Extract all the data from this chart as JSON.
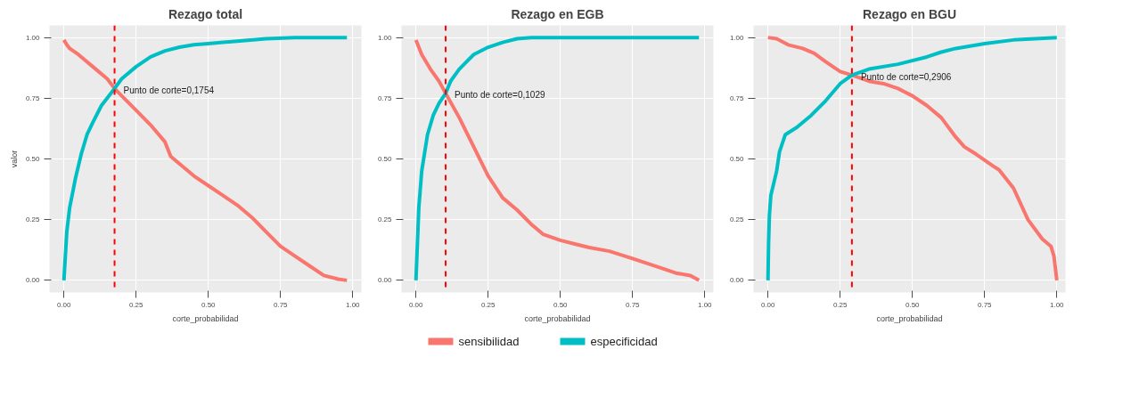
{
  "chart_data": [
    {
      "type": "line",
      "title": "Rezago total",
      "xlabel": "corte_probabilidad",
      "ylabel": "valor",
      "xlim": [
        -0.05,
        1.03
      ],
      "ylim": [
        -0.05,
        1.05
      ],
      "xticks": [
        {
          "value": 0,
          "label": "0.00"
        },
        {
          "value": 0.25,
          "label": "0.25"
        },
        {
          "value": 0.5,
          "label": "0.50"
        },
        {
          "value": 0.75,
          "label": "0.75"
        },
        {
          "value": 1,
          "label": "1.00"
        }
      ],
      "yticks": [
        {
          "value": 0,
          "label": "0.00"
        },
        {
          "value": 0.25,
          "label": "0.25"
        },
        {
          "value": 0.5,
          "label": "0.50"
        },
        {
          "value": 0.75,
          "label": "0.75"
        },
        {
          "value": 1,
          "label": "1.00"
        }
      ],
      "grid": true,
      "legend": false,
      "marker": "none",
      "line_style": "solid",
      "series": [
        {
          "color": "#f8766d",
          "x": [
            0,
            0.01,
            0.02,
            0.05,
            0.1,
            0.15,
            0.1754,
            0.2,
            0.25,
            0.3,
            0.35,
            0.37,
            0.45,
            0.5,
            0.55,
            0.6,
            0.65,
            0.7,
            0.75,
            0.8,
            0.85,
            0.9,
            0.95,
            0.98
          ],
          "values": [
            0.99,
            0.97,
            0.955,
            0.93,
            0.88,
            0.83,
            0.79,
            0.76,
            0.7,
            0.64,
            0.57,
            0.51,
            0.43,
            0.39,
            0.35,
            0.31,
            0.26,
            0.2,
            0.14,
            0.1,
            0.06,
            0.02,
            0.005,
            0.0
          ]
        },
        {
          "color": "#00bfc4",
          "x": [
            0,
            0.005,
            0.01,
            0.02,
            0.04,
            0.06,
            0.08,
            0.1,
            0.13,
            0.1754,
            0.2,
            0.25,
            0.3,
            0.35,
            0.4,
            0.45,
            0.5,
            0.6,
            0.7,
            0.8,
            0.98
          ],
          "values": [
            0,
            0.1,
            0.2,
            0.3,
            0.42,
            0.52,
            0.6,
            0.65,
            0.72,
            0.79,
            0.83,
            0.88,
            0.92,
            0.945,
            0.96,
            0.97,
            0.975,
            0.985,
            0.995,
            1.0,
            1.0
          ]
        }
      ],
      "ref_lines": [
        {
          "axis": "x",
          "value": 0.1754,
          "color": "#ff0000",
          "line_style": "dashed"
        }
      ],
      "annotations": [
        {
          "text": "Punto de corte=0,1754",
          "x": 0.1754,
          "y": 0.79
        }
      ]
    },
    {
      "type": "line",
      "title": "Rezago en EGB",
      "xlabel": "corte_probabilidad",
      "xlim": [
        -0.05,
        1.03
      ],
      "ylim": [
        -0.05,
        1.05
      ],
      "xticks": [
        {
          "value": 0,
          "label": "0.00"
        },
        {
          "value": 0.25,
          "label": "0.25"
        },
        {
          "value": 0.5,
          "label": "0.50"
        },
        {
          "value": 0.75,
          "label": "0.75"
        },
        {
          "value": 1,
          "label": "1.00"
        }
      ],
      "yticks": [
        {
          "value": 0,
          "label": "0.00"
        },
        {
          "value": 0.25,
          "label": "0.25"
        },
        {
          "value": 0.5,
          "label": "0.50"
        },
        {
          "value": 0.75,
          "label": "0.75"
        },
        {
          "value": 1,
          "label": "1.00"
        }
      ],
      "grid": true,
      "legend": "bottom",
      "marker": "none",
      "line_style": "solid",
      "series": [
        {
          "name": "sensibilidad",
          "color": "#f8766d",
          "x": [
            0,
            0.02,
            0.05,
            0.08,
            0.1029,
            0.15,
            0.2,
            0.25,
            0.3,
            0.35,
            0.4,
            0.44,
            0.5,
            0.55,
            0.6,
            0.67,
            0.75,
            0.85,
            0.9,
            0.95,
            0.98
          ],
          "values": [
            0.99,
            0.93,
            0.87,
            0.82,
            0.77,
            0.67,
            0.55,
            0.43,
            0.34,
            0.29,
            0.23,
            0.19,
            0.165,
            0.15,
            0.135,
            0.12,
            0.09,
            0.05,
            0.03,
            0.02,
            0.0
          ]
        },
        {
          "name": "especificidad",
          "color": "#00bfc4",
          "x": [
            0,
            0.005,
            0.01,
            0.02,
            0.04,
            0.06,
            0.08,
            0.1029,
            0.12,
            0.15,
            0.2,
            0.25,
            0.3,
            0.35,
            0.4,
            0.98
          ],
          "values": [
            0,
            0.15,
            0.3,
            0.45,
            0.6,
            0.68,
            0.73,
            0.77,
            0.82,
            0.87,
            0.93,
            0.96,
            0.98,
            0.995,
            1.0,
            1.0
          ]
        }
      ],
      "ref_lines": [
        {
          "axis": "x",
          "value": 0.1029,
          "color": "#ff0000",
          "line_style": "dashed"
        }
      ],
      "annotations": [
        {
          "text": "Punto de corte=0,1029",
          "x": 0.1029,
          "y": 0.77
        }
      ]
    },
    {
      "type": "line",
      "title": "Rezago en BGU",
      "xlabel": "corte_probabilidad",
      "xlim": [
        -0.05,
        1.03
      ],
      "ylim": [
        -0.05,
        1.05
      ],
      "xticks": [
        {
          "value": 0,
          "label": "0.00"
        },
        {
          "value": 0.25,
          "label": "0.25"
        },
        {
          "value": 0.5,
          "label": "0.50"
        },
        {
          "value": 0.75,
          "label": "0.75"
        },
        {
          "value": 1,
          "label": "1.00"
        }
      ],
      "yticks": [
        {
          "value": 0,
          "label": "0.00"
        },
        {
          "value": 0.25,
          "label": "0.25"
        },
        {
          "value": 0.5,
          "label": "0.50"
        },
        {
          "value": 0.75,
          "label": "0.75"
        },
        {
          "value": 1,
          "label": "1.00"
        }
      ],
      "grid": true,
      "legend": false,
      "marker": "none",
      "line_style": "solid",
      "series": [
        {
          "color": "#f8766d",
          "x": [
            0,
            0.03,
            0.07,
            0.12,
            0.16,
            0.2,
            0.25,
            0.2906,
            0.35,
            0.4,
            0.45,
            0.5,
            0.55,
            0.6,
            0.65,
            0.68,
            0.72,
            0.78,
            0.8,
            0.85,
            0.9,
            0.95,
            0.98,
            0.99,
            1.0
          ],
          "values": [
            1.0,
            0.995,
            0.97,
            0.955,
            0.935,
            0.9,
            0.86,
            0.845,
            0.82,
            0.81,
            0.79,
            0.76,
            0.72,
            0.67,
            0.59,
            0.55,
            0.52,
            0.47,
            0.455,
            0.38,
            0.25,
            0.17,
            0.14,
            0.1,
            0.0
          ]
        },
        {
          "color": "#00bfc4",
          "x": [
            0,
            0.002,
            0.005,
            0.01,
            0.03,
            0.04,
            0.06,
            0.1,
            0.15,
            0.2,
            0.25,
            0.2906,
            0.35,
            0.45,
            0.55,
            0.6,
            0.65,
            0.75,
            0.85,
            1.0
          ],
          "values": [
            0,
            0.15,
            0.27,
            0.35,
            0.45,
            0.53,
            0.6,
            0.63,
            0.68,
            0.74,
            0.81,
            0.845,
            0.87,
            0.89,
            0.92,
            0.94,
            0.955,
            0.975,
            0.99,
            1.0
          ]
        }
      ],
      "ref_lines": [
        {
          "axis": "x",
          "value": 0.2906,
          "color": "#ff0000",
          "line_style": "dashed"
        }
      ],
      "annotations": [
        {
          "text": "Punto de corte=0,2906",
          "x": 0.2906,
          "y": 0.845
        }
      ]
    }
  ]
}
